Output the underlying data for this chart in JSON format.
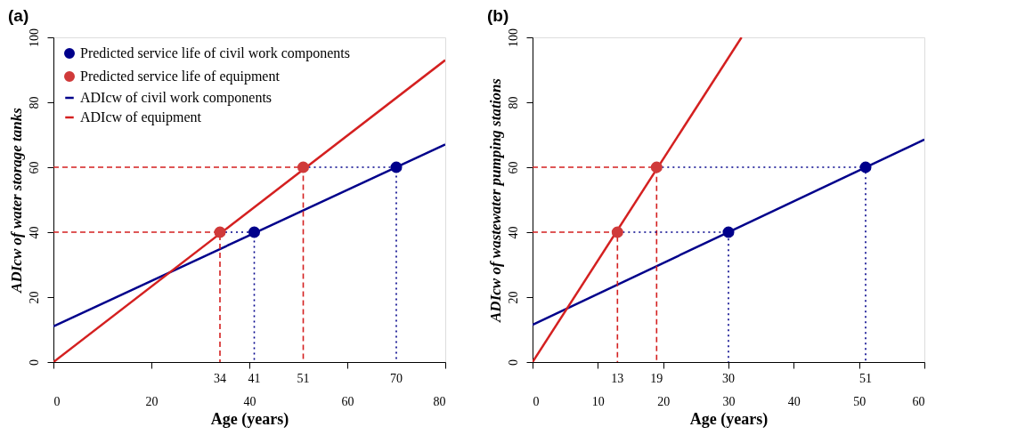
{
  "chart_data": [
    {
      "type": "line",
      "title": "(a)",
      "xlabel": "Age (years)",
      "ylabel": "ADIcw of water storage tanks",
      "xlim": [
        0,
        80
      ],
      "xticks": [
        0,
        20,
        40,
        60,
        80
      ],
      "ylim": [
        0,
        100
      ],
      "yticks": [
        0,
        20,
        40,
        60,
        80,
        100
      ],
      "grid": false,
      "legend": "top left",
      "series": [
        {
          "name": "Predicted service life of civil work components",
          "type": "scatter",
          "marker": "circle",
          "color": "#00008b",
          "x": [
            41,
            70
          ],
          "values": [
            40,
            60
          ]
        },
        {
          "name": "Predicted service life of equipment",
          "type": "scatter",
          "marker": "circle",
          "color": "#d03a3a",
          "x": [
            34,
            51
          ],
          "values": [
            40,
            60
          ]
        },
        {
          "name": "ADIcw of civil work components",
          "color": "#00008b",
          "line_style": "solid",
          "x": [
            0,
            80
          ],
          "values": [
            11,
            67
          ]
        },
        {
          "name": "ADIcw of equipment",
          "color": "#d42020",
          "line_style": "solid",
          "x": [
            0,
            80
          ],
          "values": [
            0,
            93
          ]
        },
        {
          "color": "#d42020",
          "line_style": "dashed",
          "x": [
            0,
            34,
            34
          ],
          "values": [
            40,
            40,
            0
          ]
        },
        {
          "color": "#d42020",
          "line_style": "dashed",
          "x": [
            0,
            51,
            51
          ],
          "values": [
            60,
            60,
            0
          ]
        },
        {
          "color": "#00008b",
          "line_style": "dotted",
          "x": [
            34,
            41,
            41
          ],
          "values": [
            40,
            40,
            0
          ]
        },
        {
          "color": "#00008b",
          "line_style": "dotted",
          "x": [
            51,
            70,
            70
          ],
          "values": [
            60,
            60,
            0
          ]
        }
      ],
      "annotations": [
        {
          "text": "34",
          "x": 34,
          "y": 0
        },
        {
          "text": "41",
          "x": 41,
          "y": 0
        },
        {
          "text": "51",
          "x": 51,
          "y": 0
        },
        {
          "text": "70",
          "x": 70,
          "y": 0
        }
      ]
    },
    {
      "type": "line",
      "title": "(b)",
      "xlabel": "Age (years)",
      "ylabel": "ADIcw of wastewater pumping stations",
      "xlim": [
        0,
        60
      ],
      "xticks": [
        0,
        10,
        20,
        30,
        40,
        50,
        60
      ],
      "ylim": [
        0,
        100
      ],
      "yticks": [
        0,
        20,
        40,
        60,
        80,
        100
      ],
      "grid": false,
      "legend": "top left",
      "series": [
        {
          "name": "Predicted service life of civil work components",
          "type": "scatter",
          "marker": "circle",
          "color": "#00008b",
          "x": [
            30,
            51
          ],
          "values": [
            40,
            60
          ]
        },
        {
          "name": "Predicted service life of equipment",
          "type": "scatter",
          "marker": "circle",
          "color": "#d03a3a",
          "x": [
            13,
            19
          ],
          "values": [
            40,
            60
          ]
        },
        {
          "name": "ADIcw of civil work components",
          "color": "#00008b",
          "line_style": "solid",
          "x": [
            0,
            60
          ],
          "values": [
            11.5,
            68.5
          ]
        },
        {
          "name": "ADIcw of equipment",
          "color": "#d42020",
          "line_style": "solid",
          "x": [
            0,
            32
          ],
          "values": [
            0,
            100
          ]
        },
        {
          "color": "#d42020",
          "line_style": "dashed",
          "x": [
            0,
            13,
            13
          ],
          "values": [
            40,
            40,
            0
          ]
        },
        {
          "color": "#d42020",
          "line_style": "dashed",
          "x": [
            0,
            19,
            19
          ],
          "values": [
            60,
            60,
            0
          ]
        },
        {
          "color": "#00008b",
          "line_style": "dotted",
          "x": [
            13,
            30,
            30
          ],
          "values": [
            40,
            40,
            0
          ]
        },
        {
          "color": "#00008b",
          "line_style": "dotted",
          "x": [
            19,
            51,
            51
          ],
          "values": [
            60,
            60,
            0
          ]
        }
      ],
      "annotations": [
        {
          "text": "13",
          "x": 13,
          "y": 0
        },
        {
          "text": "19",
          "x": 19,
          "y": 0
        },
        {
          "text": "30",
          "x": 30,
          "y": 0
        },
        {
          "text": "51",
          "x": 51,
          "y": 0
        }
      ]
    }
  ]
}
